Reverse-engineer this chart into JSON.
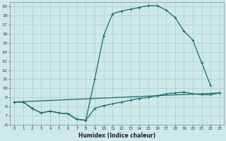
{
  "xlabel": "Humidex (Indice chaleur)",
  "bg_color": "#cce8e8",
  "line_color": "#1a6b6b",
  "grid_color": "#aacece",
  "xlim": [
    -0.5,
    23.5
  ],
  "ylim": [
    6,
    19.5
  ],
  "xticks": [
    0,
    1,
    2,
    3,
    4,
    5,
    6,
    7,
    8,
    9,
    10,
    11,
    12,
    13,
    14,
    15,
    16,
    17,
    18,
    19,
    20,
    21,
    22,
    23
  ],
  "yticks": [
    6,
    7,
    8,
    9,
    10,
    11,
    12,
    13,
    14,
    15,
    16,
    17,
    18,
    19
  ],
  "line1_x": [
    0,
    1,
    2,
    3,
    4,
    5,
    6,
    7,
    8,
    9,
    10,
    11,
    12,
    13,
    14,
    15,
    16,
    17,
    18,
    19,
    20,
    21,
    22
  ],
  "line1_y": [
    8.5,
    8.5,
    7.8,
    7.3,
    7.5,
    7.3,
    7.2,
    6.6,
    6.5,
    11.0,
    15.8,
    18.2,
    18.5,
    18.7,
    18.9,
    19.1,
    19.1,
    18.6,
    17.8,
    16.3,
    15.3,
    12.8,
    10.3
  ],
  "line2_x": [
    0,
    1,
    2,
    3,
    4,
    5,
    6,
    7,
    8,
    9,
    10,
    11,
    12,
    13,
    14,
    15,
    16,
    17,
    18,
    19,
    20,
    21,
    22,
    23
  ],
  "line2_y": [
    8.5,
    8.5,
    7.8,
    7.3,
    7.5,
    7.3,
    7.2,
    6.6,
    6.5,
    7.8,
    8.1,
    8.3,
    8.5,
    8.7,
    8.9,
    9.0,
    9.2,
    9.4,
    9.5,
    9.6,
    9.4,
    9.3,
    9.3,
    9.5
  ],
  "line3_x": [
    0,
    23
  ],
  "line3_y": [
    8.5,
    9.5
  ]
}
